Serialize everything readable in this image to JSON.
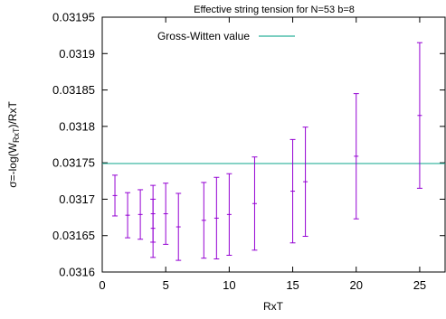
{
  "chart_data": {
    "type": "scatter",
    "title": "Effective string tension for N=53 b=8",
    "xlabel": "RxT",
    "ylabel": {
      "main": "σ=-log(W",
      "sub": "RxT",
      "rest": ")/RxT"
    },
    "xlim": [
      0,
      27
    ],
    "ylim": [
      0.0316,
      0.03195
    ],
    "x_ticks": [
      0,
      5,
      10,
      15,
      20,
      25
    ],
    "y_ticks": [
      0.0316,
      0.03165,
      0.0317,
      0.03175,
      0.0318,
      0.03185,
      0.0319,
      0.03195
    ],
    "x_tick_labels": [
      "0",
      "5",
      "10",
      "15",
      "20",
      "25"
    ],
    "y_tick_labels": [
      "0.0316",
      "0.03165",
      "0.0317",
      "0.03175",
      "0.0318",
      "0.03185",
      "0.0319",
      "0.03195"
    ],
    "grid": false,
    "legend_position": "top-left",
    "series": [
      {
        "kind": "errorbars",
        "color": "#9400d3",
        "points": [
          {
            "x": 1,
            "y": 0.031705,
            "err": 2.8e-05
          },
          {
            "x": 2,
            "y": 0.031678,
            "err": 3.1e-05
          },
          {
            "x": 3,
            "y": 0.031679,
            "err": 3.4e-05
          },
          {
            "x": 4,
            "y": 0.03168,
            "err": 3.9e-05
          },
          {
            "x": 4,
            "y": 0.03166,
            "err": 4e-05
          },
          {
            "x": 5,
            "y": 0.03168,
            "err": 4.2e-05
          },
          {
            "x": 6,
            "y": 0.031662,
            "err": 4.6e-05
          },
          {
            "x": 8,
            "y": 0.031671,
            "err": 5.2e-05
          },
          {
            "x": 9,
            "y": 0.031674,
            "err": 5.6e-05
          },
          {
            "x": 10,
            "y": 0.031679,
            "err": 5.6e-05
          },
          {
            "x": 12,
            "y": 0.031694,
            "err": 6.4e-05
          },
          {
            "x": 15,
            "y": 0.031711,
            "err": 7.1e-05
          },
          {
            "x": 16,
            "y": 0.031724,
            "err": 7.5e-05
          },
          {
            "x": 20,
            "y": 0.031759,
            "err": 8.6e-05
          },
          {
            "x": 25,
            "y": 0.031815,
            "err": 0.0001
          }
        ]
      },
      {
        "kind": "hline",
        "name": "Gross-Witten value",
        "color": "#2ab09a",
        "y": 0.031749
      }
    ]
  }
}
